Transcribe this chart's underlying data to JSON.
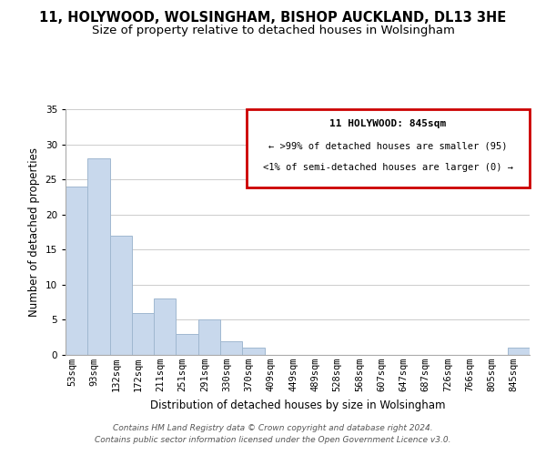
{
  "title": "11, HOLYWOOD, WOLSINGHAM, BISHOP AUCKLAND, DL13 3HE",
  "subtitle": "Size of property relative to detached houses in Wolsingham",
  "xlabel": "Distribution of detached houses by size in Wolsingham",
  "ylabel": "Number of detached properties",
  "bin_labels": [
    "53sqm",
    "93sqm",
    "132sqm",
    "172sqm",
    "211sqm",
    "251sqm",
    "291sqm",
    "330sqm",
    "370sqm",
    "409sqm",
    "449sqm",
    "489sqm",
    "528sqm",
    "568sqm",
    "607sqm",
    "647sqm",
    "687sqm",
    "726sqm",
    "766sqm",
    "805sqm",
    "845sqm"
  ],
  "bar_heights": [
    24,
    28,
    17,
    6,
    8,
    3,
    5,
    2,
    1,
    0,
    0,
    0,
    0,
    0,
    0,
    0,
    0,
    0,
    0,
    0,
    1
  ],
  "bar_color": "#c8d8ec",
  "bar_edge_color": "#a0b8d0",
  "ylim": [
    0,
    35
  ],
  "yticks": [
    0,
    5,
    10,
    15,
    20,
    25,
    30,
    35
  ],
  "grid_color": "#cccccc",
  "background_color": "#ffffff",
  "box_text_line1": "11 HOLYWOOD: 845sqm",
  "box_text_line2": "← >99% of detached houses are smaller (95)",
  "box_text_line3": "<1% of semi-detached houses are larger (0) →",
  "box_edge_color": "#cc0000",
  "footer_line1": "Contains HM Land Registry data © Crown copyright and database right 2024.",
  "footer_line2": "Contains public sector information licensed under the Open Government Licence v3.0.",
  "title_fontsize": 10.5,
  "subtitle_fontsize": 9.5,
  "axis_label_fontsize": 8.5,
  "tick_fontsize": 7.5,
  "footer_fontsize": 6.5
}
